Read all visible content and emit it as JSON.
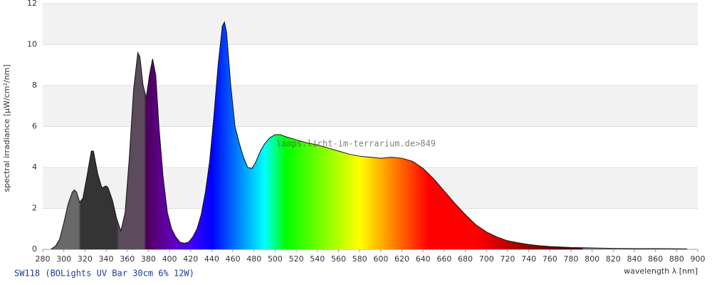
{
  "chart_data": {
    "type": "area",
    "ylabel": "spectral irradiance [µW/cm²/nm]",
    "xlabel": "wavelength λ [nm]",
    "caption": "SW118 (BOLights UV Bar 30cm 6% 12W)",
    "watermark": "lamps.licht-im-terrarium.de>849",
    "xlim": [
      280,
      900
    ],
    "ylim": [
      0,
      12
    ],
    "xticks": [
      280,
      300,
      320,
      340,
      360,
      380,
      400,
      420,
      440,
      460,
      480,
      500,
      520,
      540,
      560,
      580,
      600,
      620,
      640,
      660,
      680,
      700,
      720,
      740,
      760,
      780,
      800,
      820,
      840,
      860,
      880,
      900
    ],
    "yticks": [
      0,
      2,
      4,
      6,
      8,
      10,
      12
    ],
    "grid": true,
    "x": [
      288,
      292,
      296,
      300,
      304,
      308,
      310,
      312,
      315,
      318,
      322,
      326,
      328,
      332,
      336,
      340,
      342,
      346,
      350,
      354,
      358,
      362,
      366,
      370,
      372,
      375,
      378,
      381,
      384,
      387,
      390,
      394,
      398,
      402,
      406,
      410,
      414,
      418,
      422,
      426,
      430,
      434,
      438,
      442,
      446,
      450,
      452,
      454,
      458,
      462,
      466,
      470,
      474,
      478,
      482,
      486,
      490,
      495,
      500,
      505,
      510,
      520,
      530,
      540,
      550,
      560,
      570,
      580,
      590,
      600,
      610,
      620,
      630,
      640,
      650,
      660,
      670,
      680,
      690,
      700,
      710,
      720,
      730,
      740,
      750,
      760,
      780,
      800,
      820,
      840,
      860,
      880,
      890
    ],
    "values": [
      0.02,
      0.15,
      0.5,
      1.3,
      2.2,
      2.8,
      2.9,
      2.8,
      2.3,
      2.5,
      3.6,
      4.8,
      4.8,
      3.7,
      3.0,
      3.1,
      3.0,
      2.4,
      1.5,
      0.9,
      1.8,
      4.5,
      7.8,
      9.6,
      9.4,
      8.0,
      7.4,
      8.5,
      9.3,
      8.5,
      6.0,
      3.5,
      1.8,
      1.0,
      0.6,
      0.35,
      0.3,
      0.35,
      0.6,
      1.0,
      1.7,
      2.8,
      4.3,
      6.5,
      9.0,
      10.9,
      11.1,
      10.6,
      8.0,
      6.0,
      5.2,
      4.5,
      4.0,
      3.95,
      4.3,
      4.8,
      5.15,
      5.45,
      5.6,
      5.6,
      5.5,
      5.35,
      5.2,
      5.1,
      4.95,
      4.8,
      4.65,
      4.55,
      4.5,
      4.45,
      4.5,
      4.45,
      4.3,
      3.95,
      3.45,
      2.85,
      2.25,
      1.7,
      1.2,
      0.85,
      0.6,
      0.42,
      0.32,
      0.24,
      0.18,
      0.14,
      0.09,
      0.07,
      0.05,
      0.04,
      0.04,
      0.03,
      0.02
    ]
  }
}
